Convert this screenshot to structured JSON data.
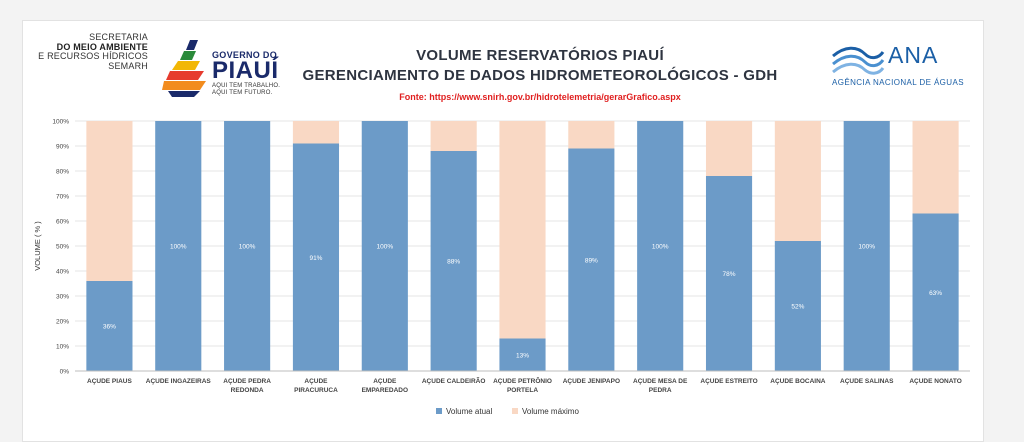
{
  "header": {
    "secretaria_lines": [
      "SECRETARIA",
      "DO MEIO AMBIENTE",
      "E RECURSOS HÍDRICOS",
      "SEMARH"
    ],
    "gov_top": "GOVERNO DO",
    "gov_name": "PIAUÍ",
    "gov_slogan_1": "AQUI TEM TRABALHO.",
    "gov_slogan_2": "AQUI TEM FUTURO.",
    "title_line1": "VOLUME RESERVATÓRIOS PIAUÍ",
    "title_line2": "GERENCIAMENTO DE DADOS HIDROMETEOROLÓGICOS - GDH",
    "source": "Fonte: https://www.snirh.gov.br/hidrotelemetria/gerarGrafico.aspx",
    "ana_name": "ANA",
    "ana_sub": "AGÊNCIA NACIONAL DE ÁGUAS"
  },
  "colors": {
    "volume_atual": "#6c9bc8",
    "volume_maximo": "#f9d8c4",
    "gridline": "#dcdcdc",
    "title": "#2e3440",
    "source": "#e02020",
    "ana_blue": "#1b5fa6"
  },
  "chart_data": {
    "type": "bar",
    "stacked": true,
    "categories": [
      [
        "AÇUDE PIAUS"
      ],
      [
        "AÇUDE INGAZEIRAS"
      ],
      [
        "AÇUDE PEDRA",
        "REDONDA"
      ],
      [
        "AÇUDE",
        "PIRACURUCA"
      ],
      [
        "AÇUDE",
        "EMPAREDADO"
      ],
      [
        "AÇUDE CALDEIRÃO"
      ],
      [
        "AÇUDE PETRÔNIO",
        "PORTELA"
      ],
      [
        "AÇUDE JENIPAPO"
      ],
      [
        "AÇUDE MESA DE",
        "PEDRA"
      ],
      [
        "AÇUDE ESTREITO"
      ],
      [
        "AÇUDE BOCAINA"
      ],
      [
        "AÇUDE SALINAS"
      ],
      [
        "AÇUDE NONATO"
      ]
    ],
    "series": [
      {
        "name": "Volume atual",
        "values": [
          36,
          100,
          100,
          91,
          100,
          88,
          13,
          89,
          100,
          78,
          52,
          100,
          63
        ]
      },
      {
        "name": "Volume máximo",
        "values": [
          64,
          0,
          0,
          9,
          0,
          12,
          87,
          11,
          0,
          22,
          48,
          0,
          37
        ]
      }
    ],
    "data_labels": [
      "36%",
      "100%",
      "100%",
      "91%",
      "100%",
      "88%",
      "13%",
      "89%",
      "100%",
      "78%",
      "52%",
      "100%",
      "63%"
    ],
    "ylabel": "VOLUME ( % )",
    "ylim": [
      0,
      100
    ],
    "yticks": [
      0,
      10,
      20,
      30,
      40,
      50,
      60,
      70,
      80,
      90,
      100
    ],
    "ytick_labels": [
      "0%",
      "10%",
      "20%",
      "30%",
      "40%",
      "50%",
      "60%",
      "70%",
      "80%",
      "90%",
      "100%"
    ],
    "grid": true,
    "legend_position": "bottom"
  }
}
